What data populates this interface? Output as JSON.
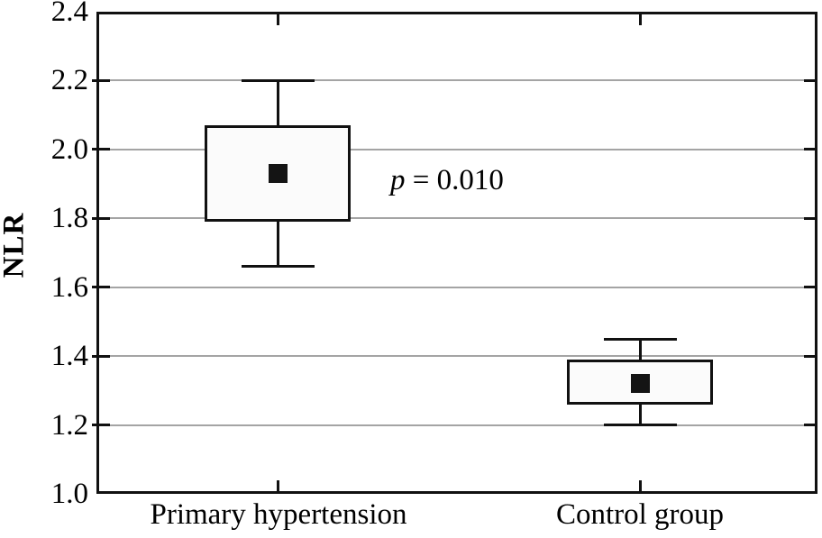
{
  "chart_data": {
    "type": "boxplot",
    "title": "",
    "ylabel": "NLR",
    "xlabel": "",
    "ylim": [
      1.0,
      2.4
    ],
    "ytick_step": 0.2,
    "yticks": [
      {
        "value": 2.4,
        "label": "2.4"
      },
      {
        "value": 2.2,
        "label": "2.2"
      },
      {
        "value": 2.0,
        "label": "2.0"
      },
      {
        "value": 1.8,
        "label": "1.8"
      },
      {
        "value": 1.6,
        "label": "1.6"
      },
      {
        "value": 1.4,
        "label": "1.4"
      },
      {
        "value": 1.2,
        "label": "1.2"
      },
      {
        "value": 1.0,
        "label": "1.0"
      }
    ],
    "grid": "horizontal",
    "legend": "none",
    "categories": [
      "Primary hypertension",
      "Control group"
    ],
    "series": [
      {
        "name": "Primary hypertension",
        "whisker_low": 1.66,
        "q1": 1.79,
        "mean": 1.93,
        "q3": 2.07,
        "whisker_high": 2.2
      },
      {
        "name": "Control group",
        "whisker_low": 1.2,
        "q1": 1.26,
        "mean": 1.32,
        "q3": 1.39,
        "whisker_high": 1.45
      }
    ],
    "marker": "filled-square-mean",
    "annotation": {
      "text": "p = 0.010",
      "p_symbol": "p",
      "p_rest": " = 0.010"
    },
    "colors": {
      "line": "#111111",
      "gridline": "#a4a4a4",
      "box_fill": "#fbfbfb",
      "marker": "#141414",
      "background": "#ffffff"
    }
  }
}
